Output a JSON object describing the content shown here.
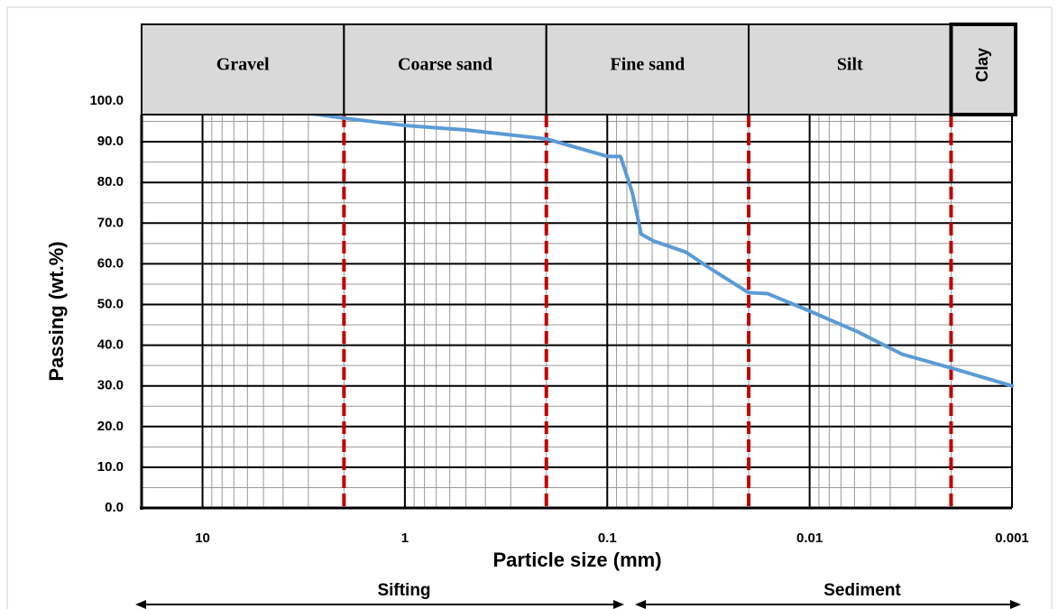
{
  "chart_data": {
    "type": "line",
    "x_label": "Particle size (mm)",
    "y_label": "Passing (wt.%)",
    "x": [
      3.0,
      2.0,
      1.0,
      0.5,
      0.2,
      0.1,
      0.086,
      0.075,
      0.068,
      0.059,
      0.041,
      0.03,
      0.02,
      0.0162,
      0.01,
      0.0058,
      0.0035,
      0.002,
      0.001
    ],
    "values": [
      97.0,
      95.8,
      94.0,
      92.9,
      90.7,
      86.4,
      86.4,
      77.3,
      67.3,
      65.6,
      62.9,
      58.4,
      52.9,
      52.7,
      48.4,
      43.3,
      37.8,
      34.4,
      30.0
    ],
    "color": "#5b9bd5",
    "xlim": [
      20,
      0.001
    ],
    "xticks": [
      10,
      1,
      0.1,
      0.01,
      0.001
    ],
    "x_log": true,
    "ylim": [
      0,
      100
    ],
    "yticks": [
      {
        "value": 0,
        "label": "0.0"
      },
      {
        "value": 10,
        "label": "10.0"
      },
      {
        "value": 20,
        "label": "20.0"
      },
      {
        "value": 30,
        "label": "30.0"
      },
      {
        "value": 40,
        "label": "40.0"
      },
      {
        "value": 50,
        "label": "50.0"
      },
      {
        "value": 60,
        "label": "60.0"
      },
      {
        "value": 70,
        "label": "70.0"
      },
      {
        "value": 80,
        "label": "80.0"
      },
      {
        "value": 90,
        "label": "90.0"
      },
      {
        "value": 100,
        "label": "100.0"
      }
    ],
    "grid": true,
    "minor_grid": true,
    "zones": [
      "Gravel",
      "Coarse sand",
      "Fine sand",
      "Silt",
      "Clay"
    ],
    "zone_boundaries": [
      2,
      0.2,
      0.02,
      0.002
    ],
    "boundary_color": "#c00000",
    "methods": [
      "Sifting",
      "Sediment"
    ]
  }
}
